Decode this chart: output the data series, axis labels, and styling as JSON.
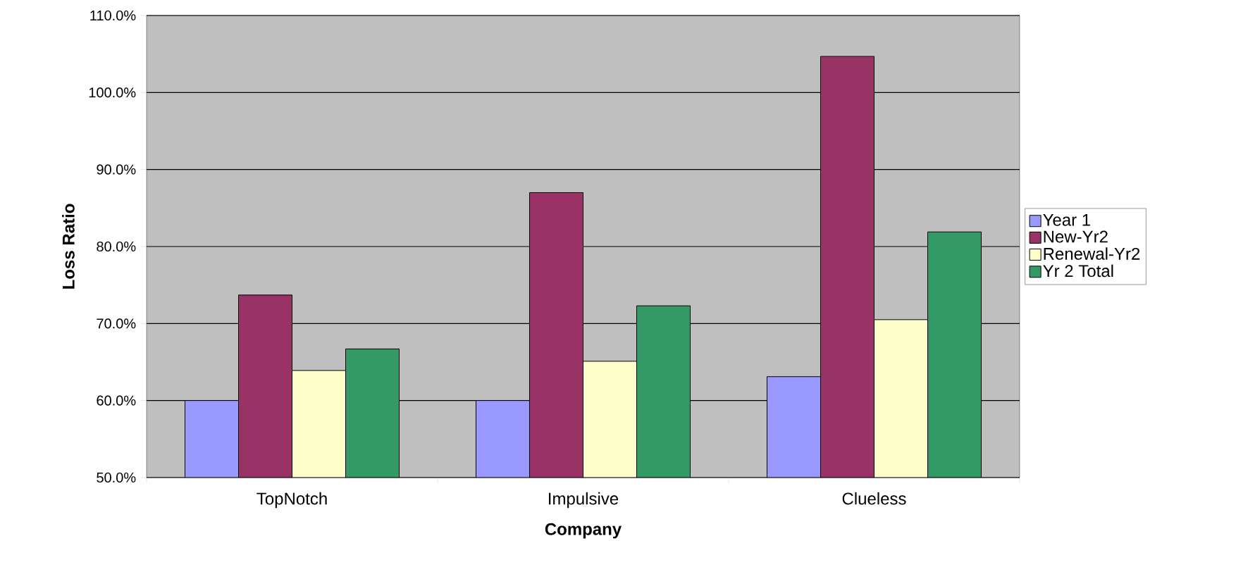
{
  "chart_data": {
    "type": "bar",
    "xlabel": "Company",
    "ylabel": "Loss Ratio",
    "categories": [
      "TopNotch",
      "Impulsive",
      "Clueless"
    ],
    "series": [
      {
        "name": "Year 1",
        "color": "#9999ff",
        "values": [
          60.0,
          60.0,
          63.1
        ]
      },
      {
        "name": "New-Yr2",
        "color": "#993366",
        "values": [
          73.7,
          87.0,
          104.7
        ]
      },
      {
        "name": "Renewal-Yr2",
        "color": "#ffffcc",
        "values": [
          63.9,
          65.1,
          70.5
        ]
      },
      {
        "name": "Yr 2 Total",
        "color": "#339966",
        "values": [
          66.7,
          72.3,
          81.9
        ]
      }
    ],
    "ylim": [
      50,
      110
    ],
    "yticks": [
      {
        "value": 50,
        "label": "50.0%"
      },
      {
        "value": 60,
        "label": "60.0%"
      },
      {
        "value": 70,
        "label": "70.0%"
      },
      {
        "value": 80,
        "label": "80.0%"
      },
      {
        "value": 90,
        "label": "90.0%"
      },
      {
        "value": 100,
        "label": "100.0%"
      },
      {
        "value": 110,
        "label": "110.0%"
      }
    ],
    "grid": "y",
    "legend": "right"
  }
}
